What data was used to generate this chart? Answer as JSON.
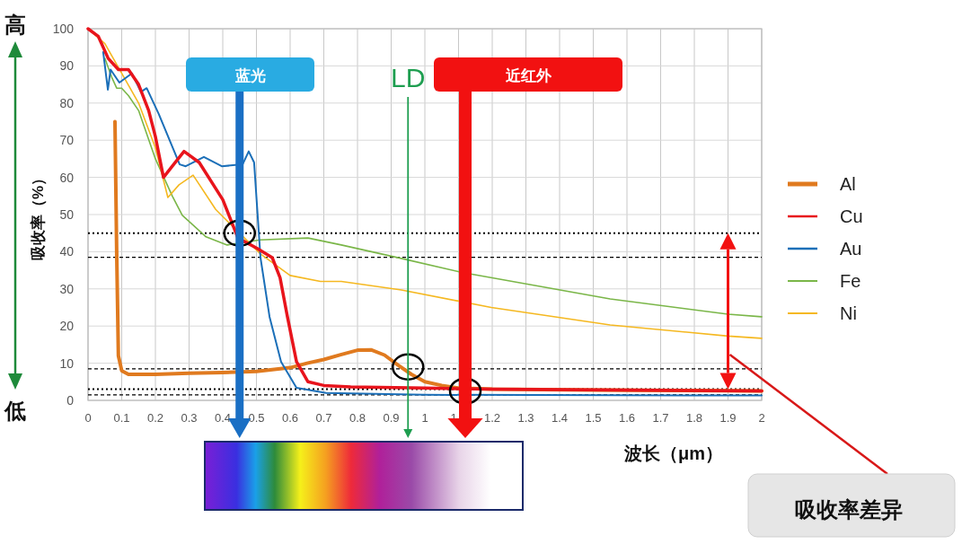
{
  "chart_data": {
    "type": "line",
    "xlabel": "波长（μm）",
    "ylabel": "吸收率（%）",
    "xlim": [
      0,
      2
    ],
    "ylim": [
      0,
      100
    ],
    "xticks": [
      0,
      0.1,
      0.2,
      0.3,
      0.4,
      0.5,
      0.6,
      0.7,
      0.8,
      0.9,
      1,
      1.1,
      1.2,
      1.3,
      1.4,
      1.5,
      1.6,
      1.7,
      1.8,
      1.9,
      2
    ],
    "yticks": [
      0,
      10,
      20,
      30,
      40,
      50,
      60,
      70,
      80,
      90,
      100
    ],
    "grid": true,
    "legend": "right",
    "series": [
      {
        "name": "Al",
        "color": "#e07a1f",
        "x": [
          0.08,
          0.085,
          0.09,
          0.1,
          0.12,
          0.2,
          0.3,
          0.4,
          0.5,
          0.6,
          0.65,
          0.7,
          0.75,
          0.8,
          0.84,
          0.88,
          0.92,
          0.96,
          1.0,
          1.05,
          1.1,
          1.2,
          1.5,
          2
        ],
        "values": [
          75,
          40,
          12,
          8,
          7,
          7,
          7.3,
          7.5,
          7.8,
          8.8,
          10,
          11,
          12.3,
          13.5,
          13.6,
          12.2,
          9.5,
          7,
          5,
          4,
          3.3,
          3,
          2.8,
          2.5
        ]
      },
      {
        "name": "Cu",
        "color": "#e8141c",
        "x": [
          0,
          0.03,
          0.06,
          0.09,
          0.12,
          0.15,
          0.18,
          0.2,
          0.224,
          0.25,
          0.285,
          0.33,
          0.4,
          0.445,
          0.5,
          0.547,
          0.57,
          0.592,
          0.619,
          0.653,
          0.7,
          0.78,
          1.0,
          1.2,
          2
        ],
        "values": [
          100,
          98,
          92,
          89,
          89,
          85,
          78,
          71,
          60,
          63,
          67,
          64,
          54,
          43.7,
          41,
          38.4,
          33,
          22.5,
          10.4,
          5,
          4,
          3.6,
          3.3,
          3,
          2.5
        ]
      },
      {
        "name": "Au",
        "color": "#1b6fb8",
        "x": [
          0.045,
          0.059,
          0.067,
          0.093,
          0.13,
          0.157,
          0.174,
          0.21,
          0.272,
          0.29,
          0.344,
          0.397,
          0.459,
          0.477,
          0.493,
          0.512,
          0.539,
          0.573,
          0.619,
          0.707,
          1.0,
          2
        ],
        "values": [
          93.7,
          83.6,
          89,
          85.5,
          88,
          83,
          84,
          77,
          63.5,
          63,
          65.5,
          63,
          63.5,
          67,
          64,
          38.4,
          22.5,
          10.4,
          3.4,
          2,
          1.5,
          1.3
        ]
      },
      {
        "name": "Fe",
        "color": "#7ab648",
        "x": [
          0.05,
          0.07,
          0.085,
          0.1,
          0.12,
          0.15,
          0.2,
          0.25,
          0.28,
          0.35,
          0.413,
          0.51,
          0.653,
          0.752,
          0.93,
          1.107,
          1.55,
          1.9,
          2
        ],
        "values": [
          92,
          87,
          84,
          84,
          82,
          78,
          65,
          55,
          49.8,
          44,
          41.8,
          43.2,
          43.7,
          41.8,
          38.2,
          34.5,
          27.3,
          23.2,
          22.5
        ]
      },
      {
        "name": "Ni",
        "color": "#f5b820",
        "x": [
          0,
          0.05,
          0.1,
          0.15,
          0.2,
          0.237,
          0.27,
          0.312,
          0.379,
          0.512,
          0.6,
          0.69,
          0.752,
          0.93,
          1.197,
          1.55,
          1.9,
          2
        ],
        "values": [
          100,
          96,
          88,
          80,
          68,
          54.6,
          58,
          60.6,
          51.4,
          39.4,
          33.6,
          32,
          32,
          29.7,
          25,
          20.3,
          17.3,
          16.7
        ]
      }
    ],
    "ref_lines": [
      {
        "axis": "x",
        "value": 0.45,
        "label": "蓝光",
        "color": "#1a6fc4"
      },
      {
        "axis": "x",
        "value": 0.95,
        "label": "LD",
        "color": "#1e9e50"
      },
      {
        "axis": "x",
        "value": 1.12,
        "label": "近红外",
        "color": "#f21111"
      },
      {
        "axis": "y",
        "value": 45,
        "color": "#000000",
        "line_style": "dotted"
      },
      {
        "axis": "y",
        "value": 38.5,
        "color": "#000000",
        "line_style": "dashed"
      },
      {
        "axis": "y",
        "value": 8.5,
        "color": "#000000",
        "line_style": "dashed"
      },
      {
        "axis": "y",
        "value": 3,
        "color": "#000000",
        "line_style": "dotted"
      },
      {
        "axis": "y",
        "value": 1.5,
        "color": "#000000",
        "line_style": "dashed"
      }
    ],
    "annotations": [
      "高",
      "低",
      "吸收率差异"
    ]
  }
}
